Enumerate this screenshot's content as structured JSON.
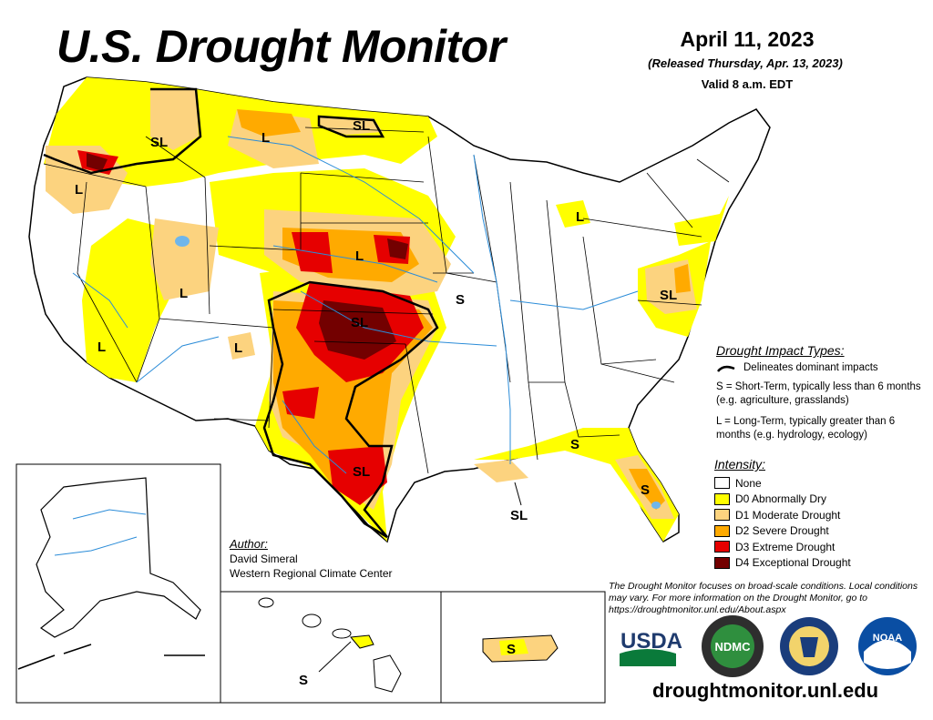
{
  "title": "U.S. Drought Monitor",
  "date": "April 11, 2023",
  "released": "(Released Thursday, Apr. 13, 2023)",
  "valid": "Valid 8 a.m. EDT",
  "impact_types": {
    "title": "Drought Impact Types:",
    "delineates": "Delineates dominant impacts",
    "short_term": "S = Short-Term, typically less than 6 months (e.g. agriculture, grasslands)",
    "long_term": "L = Long-Term, typically greater than 6 months (e.g. hydrology, ecology)"
  },
  "intensity": {
    "title": "Intensity:",
    "items": [
      {
        "label": "None",
        "color": "#ffffff"
      },
      {
        "label": "D0 Abnormally Dry",
        "color": "#ffff00"
      },
      {
        "label": "D1 Moderate Drought",
        "color": "#fcd37f"
      },
      {
        "label": "D2 Severe Drought",
        "color": "#ffaa00"
      },
      {
        "label": "D3 Extreme Drought",
        "color": "#e60000"
      },
      {
        "label": "D4 Exceptional Drought",
        "color": "#730000"
      }
    ]
  },
  "author": {
    "title": "Author:",
    "name": "David Simeral",
    "org": "Western Regional Climate Center"
  },
  "footnote": "The Drought Monitor focuses on broad-scale conditions. Local conditions may vary. For more information on the Drought Monitor, go to https://droughtmonitor.unl.edu/About.aspx",
  "website": "droughtmonitor.unl.edu",
  "impact_labels": {
    "sl_idaho": "SL",
    "sl_north_dakota": "SL",
    "l_montana": "L",
    "l_oregon": "L",
    "l_utah": "L",
    "l_nevada": "L",
    "l_new_mexico": "L",
    "l_nebraska": "L",
    "sl_kansas": "SL",
    "sl_texas": "SL",
    "s_missouri": "S",
    "l_michigan": "L",
    "sl_virginia": "SL",
    "s_georgia": "S",
    "s_florida": "S",
    "sl_louisiana": "SL",
    "s_hawaii": "S",
    "s_puerto_rico": "S"
  },
  "logos": {
    "usda": "USDA",
    "ndmc": "NDMC",
    "noaa": "NOAA"
  }
}
